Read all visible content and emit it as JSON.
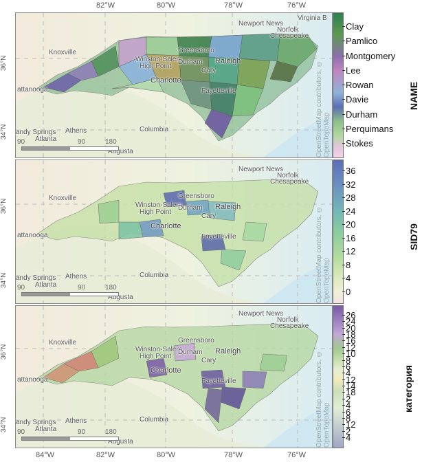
{
  "axes": {
    "x_ticks": [
      "84°W",
      "82°W",
      "80°W",
      "78°W",
      "76°W"
    ],
    "y_ticks": [
      "36°N",
      "34°N"
    ]
  },
  "attribution": "OpenStreetMap contributors, © OpenTopoMap",
  "places": {
    "virginia_beach": "Virginia B",
    "norfolk": "Norfolk",
    "newport_news": "Newport News",
    "chesapeake": "Chesapeake",
    "knoxville": "Knoxville",
    "greensboro": "Greensboro",
    "winston_salem": "Winston-Salem",
    "high_point": "High Point",
    "durham": "Durham",
    "raleigh": "Raleigh",
    "cary": "Cary",
    "charlotte": "Charlotte",
    "fayetteville": "Fayetteville",
    "chattanooga": "attanooga",
    "columbia": "Columbia",
    "sandy_springs": "andy Springs",
    "athens": "Athens",
    "atlanta": "Atlanta",
    "augusta": "Augusta"
  },
  "scale": {
    "a": "90",
    "b": "90",
    "c": "180"
  },
  "legends": {
    "name": {
      "title": "NAME",
      "labels": [
        "Clay",
        "Pamlico",
        "Montgomery",
        "Lee",
        "Rowan",
        "Davie",
        "Durham",
        "Perquimans",
        "Stokes"
      ]
    },
    "sid79": {
      "title": "SID79",
      "labels": [
        "36",
        "32",
        "28",
        "24",
        "20",
        "16",
        "12",
        "8",
        "4",
        "0"
      ]
    },
    "category": {
      "title": "категория",
      "labels": [
        "26",
        "24",
        "20",
        "18",
        "16",
        "12",
        "10",
        "8",
        "6",
        "4",
        "12",
        "14",
        "18",
        "2",
        "4",
        "6",
        "8",
        "12",
        "2",
        "4"
      ]
    }
  },
  "colors": {
    "name_gradient": [
      "#2d7f52",
      "#5c9b4f",
      "#8b6fae",
      "#c085c0",
      "#8fb4d8",
      "#5a6db3",
      "#8dc089",
      "#b2d7a0",
      "#e3c6dd",
      "#f3d4e6"
    ],
    "sid_gradient": [
      "#5c6db6",
      "#6a91c2",
      "#70b7b8",
      "#8bcf9c",
      "#b2dc9e",
      "#d6e8b8",
      "#f0efd7",
      "#f4e2e5"
    ],
    "cat_gradient": [
      "#7a5aa7",
      "#a486c4",
      "#c2a7d6",
      "#9fc990",
      "#c6deab",
      "#e7efd2",
      "#f1e9bb",
      "#c9e0b7",
      "#e2efd5",
      "#9fa6c8"
    ]
  }
}
